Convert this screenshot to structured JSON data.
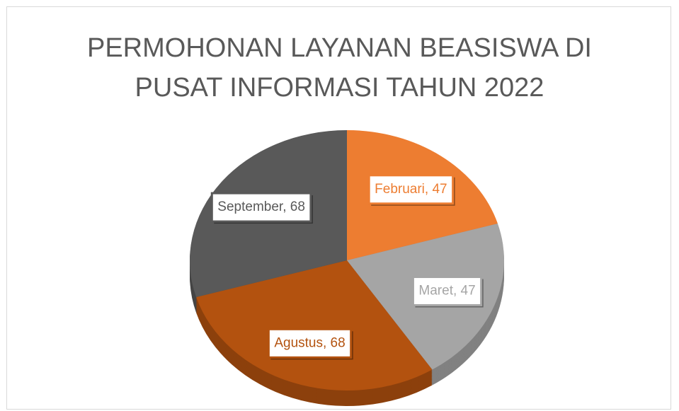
{
  "chart_data": {
    "type": "pie",
    "title": "PERMOHONAN LAYANAN BEASISWA DI PUSAT INFORMASI TAHUN 2022",
    "categories": [
      "Februari",
      "Maret",
      "Agustus",
      "September"
    ],
    "values": [
      47,
      47,
      68,
      68
    ],
    "value_labels": [
      "Februari, 47",
      "Maret, 47",
      "Agustus, 68",
      "September, 68"
    ],
    "colors": [
      "#ed7d31",
      "#a5a5a5",
      "#b3520f",
      "#595959"
    ]
  }
}
